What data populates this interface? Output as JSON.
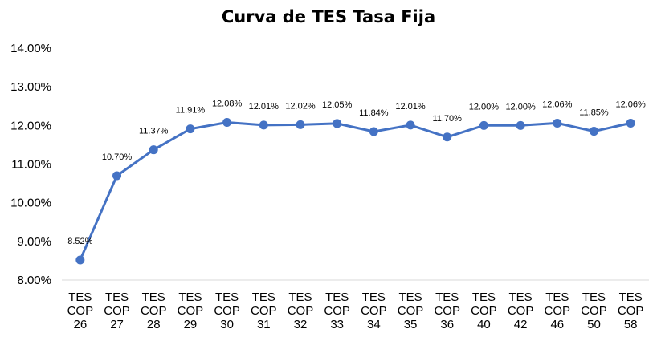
{
  "chart_data": {
    "type": "line",
    "title": "Curva de TES Tasa Fija",
    "xlabel": "",
    "ylabel": "",
    "ylim": [
      8,
      14
    ],
    "y_ticks": [
      "14.00%",
      "13.00%",
      "12.00%",
      "11.00%",
      "10.00%",
      "9.00%",
      "8.00%"
    ],
    "grid": false,
    "legend": "none",
    "line_color": "#4472C4",
    "categories": [
      [
        "TES",
        "COP",
        "26"
      ],
      [
        "TES",
        "COP",
        "27"
      ],
      [
        "TES",
        "COP",
        "28"
      ],
      [
        "TES",
        "COP",
        "29"
      ],
      [
        "TES",
        "COP",
        "30"
      ],
      [
        "TES",
        "COP",
        "31"
      ],
      [
        "TES",
        "COP",
        "32"
      ],
      [
        "TES",
        "COP",
        "33"
      ],
      [
        "TES",
        "COP",
        "34"
      ],
      [
        "TES",
        "COP",
        "35"
      ],
      [
        "TES",
        "COP",
        "36"
      ],
      [
        "TES",
        "COP",
        "40"
      ],
      [
        "TES",
        "COP",
        "42"
      ],
      [
        "TES",
        "COP",
        "46"
      ],
      [
        "TES",
        "COP",
        "50"
      ],
      [
        "TES",
        "COP",
        "58"
      ]
    ],
    "values": [
      8.52,
      10.7,
      11.37,
      11.91,
      12.08,
      12.01,
      12.02,
      12.05,
      11.84,
      12.01,
      11.7,
      12.0,
      12.0,
      12.06,
      11.85,
      12.06
    ],
    "data_labels": [
      "8.52%",
      "10.70%",
      "11.37%",
      "11.91%",
      "12.08%",
      "12.01%",
      "12.02%",
      "12.05%",
      "11.84%",
      "12.01%",
      "11.70%",
      "12.00%",
      "12.00%",
      "12.06%",
      "11.85%",
      "12.06%"
    ]
  }
}
